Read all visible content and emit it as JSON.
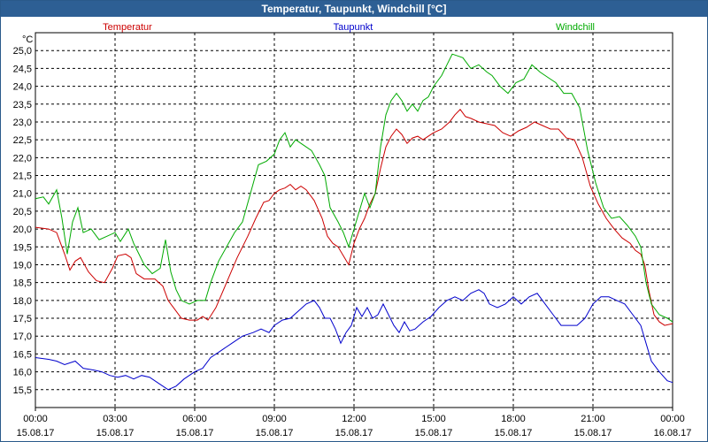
{
  "chart_data": {
    "type": "line",
    "title": "Temperatur, Taupunkt, Windchill [°C]",
    "ylabel": "°C",
    "ylim": [
      15.0,
      25.5
    ],
    "yticks": [
      "15,5",
      "16,0",
      "16,5",
      "17,0",
      "17,5",
      "18,0",
      "18,5",
      "19,0",
      "19,5",
      "20,0",
      "20,5",
      "21,0",
      "21,5",
      "22,0",
      "22,5",
      "23,0",
      "23,5",
      "24,0",
      "24,5",
      "25,0"
    ],
    "xlim": [
      0,
      24
    ],
    "xticks": [
      {
        "x": 0,
        "time": "00:00",
        "date": "15.08.17"
      },
      {
        "x": 3,
        "time": "03:00",
        "date": "15.08.17"
      },
      {
        "x": 6,
        "time": "06:00",
        "date": "15.08.17"
      },
      {
        "x": 9,
        "time": "09:00",
        "date": "15.08.17"
      },
      {
        "x": 12,
        "time": "12:00",
        "date": "15.08.17"
      },
      {
        "x": 15,
        "time": "15:00",
        "date": "15.08.17"
      },
      {
        "x": 18,
        "time": "18:00",
        "date": "15.08.17"
      },
      {
        "x": 21,
        "time": "21:00",
        "date": "15.08.17"
      },
      {
        "x": 24,
        "time": "00:00",
        "date": "16.08.17"
      }
    ],
    "series": [
      {
        "name": "Temperatur",
        "color": "#cc0000",
        "points": [
          [
            0.0,
            20.05
          ],
          [
            0.5,
            20.0
          ],
          [
            0.8,
            19.9
          ],
          [
            1.1,
            19.3
          ],
          [
            1.3,
            18.85
          ],
          [
            1.5,
            19.1
          ],
          [
            1.7,
            19.2
          ],
          [
            2.0,
            18.8
          ],
          [
            2.3,
            18.55
          ],
          [
            2.6,
            18.5
          ],
          [
            2.9,
            18.9
          ],
          [
            3.1,
            19.25
          ],
          [
            3.4,
            19.3
          ],
          [
            3.6,
            19.2
          ],
          [
            3.8,
            18.75
          ],
          [
            4.1,
            18.6
          ],
          [
            4.5,
            18.6
          ],
          [
            4.8,
            18.4
          ],
          [
            5.0,
            18.0
          ],
          [
            5.2,
            17.8
          ],
          [
            5.5,
            17.5
          ],
          [
            5.8,
            17.45
          ],
          [
            6.1,
            17.45
          ],
          [
            6.3,
            17.55
          ],
          [
            6.5,
            17.45
          ],
          [
            6.8,
            17.8
          ],
          [
            7.2,
            18.5
          ],
          [
            7.6,
            19.2
          ],
          [
            8.0,
            19.8
          ],
          [
            8.3,
            20.3
          ],
          [
            8.6,
            20.75
          ],
          [
            8.8,
            20.8
          ],
          [
            9.0,
            21.0
          ],
          [
            9.2,
            21.1
          ],
          [
            9.4,
            21.15
          ],
          [
            9.6,
            21.25
          ],
          [
            9.8,
            21.1
          ],
          [
            10.0,
            21.2
          ],
          [
            10.2,
            21.1
          ],
          [
            10.5,
            20.8
          ],
          [
            10.8,
            20.3
          ],
          [
            11.0,
            19.8
          ],
          [
            11.2,
            19.6
          ],
          [
            11.4,
            19.5
          ],
          [
            11.6,
            19.25
          ],
          [
            11.8,
            19.0
          ],
          [
            12.0,
            19.6
          ],
          [
            12.2,
            20.0
          ],
          [
            12.4,
            20.3
          ],
          [
            12.6,
            20.7
          ],
          [
            12.8,
            21.0
          ],
          [
            13.0,
            21.7
          ],
          [
            13.2,
            22.3
          ],
          [
            13.4,
            22.6
          ],
          [
            13.6,
            22.8
          ],
          [
            13.8,
            22.65
          ],
          [
            14.0,
            22.4
          ],
          [
            14.2,
            22.55
          ],
          [
            14.4,
            22.6
          ],
          [
            14.6,
            22.5
          ],
          [
            14.8,
            22.6
          ],
          [
            15.0,
            22.7
          ],
          [
            15.3,
            22.8
          ],
          [
            15.6,
            23.0
          ],
          [
            15.8,
            23.2
          ],
          [
            16.0,
            23.35
          ],
          [
            16.2,
            23.15
          ],
          [
            16.4,
            23.1
          ],
          [
            16.7,
            23.0
          ],
          [
            17.0,
            22.95
          ],
          [
            17.3,
            22.9
          ],
          [
            17.6,
            22.7
          ],
          [
            17.9,
            22.6
          ],
          [
            18.2,
            22.75
          ],
          [
            18.5,
            22.85
          ],
          [
            18.8,
            23.0
          ],
          [
            19.1,
            22.9
          ],
          [
            19.4,
            22.8
          ],
          [
            19.7,
            22.8
          ],
          [
            20.0,
            22.55
          ],
          [
            20.3,
            22.5
          ],
          [
            20.6,
            22.0
          ],
          [
            20.9,
            21.2
          ],
          [
            21.2,
            20.7
          ],
          [
            21.5,
            20.3
          ],
          [
            21.8,
            20.0
          ],
          [
            22.1,
            19.75
          ],
          [
            22.4,
            19.6
          ],
          [
            22.6,
            19.4
          ],
          [
            22.8,
            19.3
          ],
          [
            22.95,
            19.0
          ],
          [
            23.1,
            18.3
          ],
          [
            23.3,
            17.6
          ],
          [
            23.5,
            17.4
          ],
          [
            23.7,
            17.3
          ],
          [
            24.0,
            17.35
          ]
        ]
      },
      {
        "name": "Taupunkt",
        "color": "#0000cc",
        "points": [
          [
            0.0,
            16.4
          ],
          [
            0.5,
            16.35
          ],
          [
            0.8,
            16.3
          ],
          [
            1.1,
            16.2
          ],
          [
            1.5,
            16.3
          ],
          [
            1.8,
            16.1
          ],
          [
            2.2,
            16.05
          ],
          [
            2.5,
            16.0
          ],
          [
            2.8,
            15.9
          ],
          [
            3.1,
            15.85
          ],
          [
            3.4,
            15.9
          ],
          [
            3.7,
            15.8
          ],
          [
            4.0,
            15.9
          ],
          [
            4.3,
            15.85
          ],
          [
            4.7,
            15.65
          ],
          [
            5.0,
            15.5
          ],
          [
            5.3,
            15.6
          ],
          [
            5.6,
            15.8
          ],
          [
            6.0,
            16.0
          ],
          [
            6.3,
            16.1
          ],
          [
            6.6,
            16.4
          ],
          [
            7.0,
            16.6
          ],
          [
            7.4,
            16.8
          ],
          [
            7.8,
            17.0
          ],
          [
            8.2,
            17.1
          ],
          [
            8.5,
            17.2
          ],
          [
            8.8,
            17.1
          ],
          [
            9.0,
            17.3
          ],
          [
            9.3,
            17.45
          ],
          [
            9.6,
            17.5
          ],
          [
            9.9,
            17.7
          ],
          [
            10.2,
            17.9
          ],
          [
            10.5,
            18.0
          ],
          [
            10.7,
            17.8
          ],
          [
            10.9,
            17.5
          ],
          [
            11.1,
            17.5
          ],
          [
            11.3,
            17.2
          ],
          [
            11.5,
            16.8
          ],
          [
            11.7,
            17.1
          ],
          [
            11.9,
            17.3
          ],
          [
            12.1,
            17.8
          ],
          [
            12.3,
            17.55
          ],
          [
            12.5,
            17.8
          ],
          [
            12.7,
            17.5
          ],
          [
            12.9,
            17.6
          ],
          [
            13.1,
            17.9
          ],
          [
            13.3,
            17.6
          ],
          [
            13.5,
            17.3
          ],
          [
            13.7,
            17.1
          ],
          [
            13.9,
            17.4
          ],
          [
            14.1,
            17.15
          ],
          [
            14.3,
            17.2
          ],
          [
            14.6,
            17.4
          ],
          [
            14.9,
            17.55
          ],
          [
            15.2,
            17.8
          ],
          [
            15.5,
            18.0
          ],
          [
            15.8,
            18.1
          ],
          [
            16.1,
            18.0
          ],
          [
            16.4,
            18.2
          ],
          [
            16.7,
            18.3
          ],
          [
            16.9,
            18.2
          ],
          [
            17.1,
            17.9
          ],
          [
            17.4,
            17.8
          ],
          [
            17.7,
            17.9
          ],
          [
            18.0,
            18.1
          ],
          [
            18.3,
            17.9
          ],
          [
            18.6,
            18.1
          ],
          [
            18.9,
            18.2
          ],
          [
            19.2,
            17.9
          ],
          [
            19.5,
            17.6
          ],
          [
            19.8,
            17.3
          ],
          [
            20.1,
            17.3
          ],
          [
            20.4,
            17.3
          ],
          [
            20.7,
            17.5
          ],
          [
            21.0,
            17.9
          ],
          [
            21.3,
            18.1
          ],
          [
            21.6,
            18.1
          ],
          [
            21.9,
            18.0
          ],
          [
            22.2,
            17.9
          ],
          [
            22.5,
            17.6
          ],
          [
            22.8,
            17.3
          ],
          [
            23.0,
            16.8
          ],
          [
            23.2,
            16.3
          ],
          [
            23.5,
            16.0
          ],
          [
            23.8,
            15.75
          ],
          [
            24.0,
            15.7
          ]
        ]
      },
      {
        "name": "Windchill",
        "color": "#00aa00",
        "points": [
          [
            0.0,
            20.85
          ],
          [
            0.3,
            20.9
          ],
          [
            0.5,
            20.7
          ],
          [
            0.8,
            21.1
          ],
          [
            1.0,
            20.3
          ],
          [
            1.2,
            19.3
          ],
          [
            1.4,
            20.2
          ],
          [
            1.6,
            20.6
          ],
          [
            1.8,
            19.9
          ],
          [
            2.1,
            20.0
          ],
          [
            2.4,
            19.7
          ],
          [
            2.7,
            19.8
          ],
          [
            3.0,
            19.9
          ],
          [
            3.2,
            19.65
          ],
          [
            3.5,
            20.0
          ],
          [
            3.7,
            19.6
          ],
          [
            3.9,
            19.3
          ],
          [
            4.1,
            19.0
          ],
          [
            4.4,
            18.75
          ],
          [
            4.7,
            18.9
          ],
          [
            4.9,
            19.7
          ],
          [
            5.1,
            18.8
          ],
          [
            5.3,
            18.3
          ],
          [
            5.5,
            18.0
          ],
          [
            5.8,
            17.9
          ],
          [
            6.1,
            18.0
          ],
          [
            6.4,
            18.0
          ],
          [
            6.6,
            18.5
          ],
          [
            6.9,
            19.1
          ],
          [
            7.2,
            19.5
          ],
          [
            7.5,
            19.9
          ],
          [
            7.8,
            20.2
          ],
          [
            8.1,
            21.0
          ],
          [
            8.4,
            21.8
          ],
          [
            8.7,
            21.9
          ],
          [
            9.0,
            22.1
          ],
          [
            9.2,
            22.5
          ],
          [
            9.4,
            22.7
          ],
          [
            9.6,
            22.3
          ],
          [
            9.8,
            22.5
          ],
          [
            10.1,
            22.35
          ],
          [
            10.4,
            22.2
          ],
          [
            10.7,
            21.8
          ],
          [
            10.9,
            21.5
          ],
          [
            11.1,
            20.6
          ],
          [
            11.4,
            20.2
          ],
          [
            11.6,
            19.9
          ],
          [
            11.8,
            19.5
          ],
          [
            12.0,
            20.0
          ],
          [
            12.2,
            20.5
          ],
          [
            12.4,
            21.0
          ],
          [
            12.6,
            20.6
          ],
          [
            12.8,
            21.0
          ],
          [
            13.0,
            22.3
          ],
          [
            13.2,
            23.2
          ],
          [
            13.4,
            23.6
          ],
          [
            13.6,
            23.8
          ],
          [
            13.8,
            23.6
          ],
          [
            14.0,
            23.3
          ],
          [
            14.2,
            23.5
          ],
          [
            14.4,
            23.3
          ],
          [
            14.6,
            23.6
          ],
          [
            14.8,
            23.7
          ],
          [
            15.0,
            24.0
          ],
          [
            15.3,
            24.3
          ],
          [
            15.5,
            24.6
          ],
          [
            15.7,
            24.9
          ],
          [
            15.9,
            24.85
          ],
          [
            16.1,
            24.8
          ],
          [
            16.4,
            24.5
          ],
          [
            16.7,
            24.6
          ],
          [
            17.0,
            24.4
          ],
          [
            17.2,
            24.3
          ],
          [
            17.5,
            24.0
          ],
          [
            17.8,
            23.8
          ],
          [
            18.1,
            24.1
          ],
          [
            18.4,
            24.2
          ],
          [
            18.7,
            24.6
          ],
          [
            19.0,
            24.4
          ],
          [
            19.3,
            24.25
          ],
          [
            19.6,
            24.1
          ],
          [
            19.9,
            23.8
          ],
          [
            20.2,
            23.8
          ],
          [
            20.5,
            23.4
          ],
          [
            20.8,
            22.2
          ],
          [
            21.1,
            21.3
          ],
          [
            21.4,
            20.6
          ],
          [
            21.7,
            20.3
          ],
          [
            22.0,
            20.35
          ],
          [
            22.3,
            20.1
          ],
          [
            22.6,
            19.8
          ],
          [
            22.8,
            19.5
          ],
          [
            23.0,
            18.5
          ],
          [
            23.2,
            17.9
          ],
          [
            23.5,
            17.6
          ],
          [
            23.8,
            17.5
          ],
          [
            24.0,
            17.4
          ]
        ]
      }
    ]
  }
}
